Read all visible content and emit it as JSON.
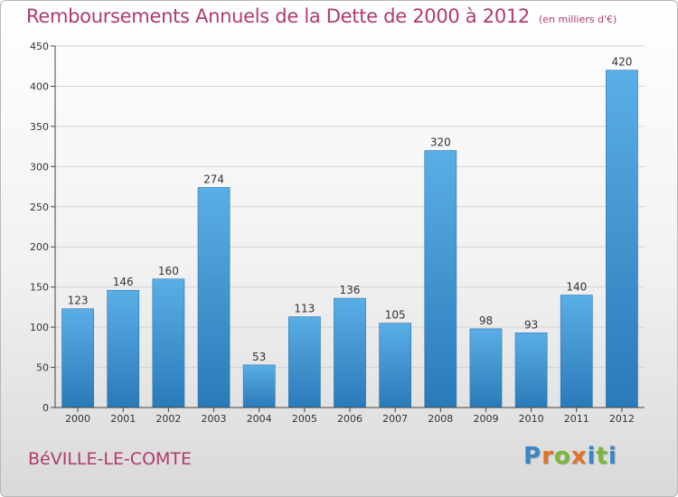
{
  "header": {
    "title": "Remboursements Annuels de la Dette de 2000 à 2012",
    "unit": "(en milliers d'€)"
  },
  "footer": {
    "town": "BéVILLE-LE-COMTE",
    "brand": "Proxiti",
    "brand_colors": [
      "#3a86c8",
      "#e2722b",
      "#7bb83a",
      "#e2722b",
      "#3a86c8",
      "#7bb83a",
      "#3a86c8"
    ]
  },
  "colors": {
    "bar_top": "#5aaee6",
    "bar_bottom": "#2a7ab8",
    "axis": "#444444",
    "grid": "#d2d2d2"
  },
  "chart_data": {
    "type": "bar",
    "categories": [
      "2000",
      "2001",
      "2002",
      "2003",
      "2004",
      "2005",
      "2006",
      "2007",
      "2008",
      "2009",
      "2010",
      "2011",
      "2012"
    ],
    "values": [
      123,
      146,
      160,
      274,
      53,
      113,
      136,
      105,
      320,
      98,
      93,
      140,
      420
    ],
    "title": "Remboursements Annuels de la Dette de 2000 à 2012",
    "ylim": [
      0,
      450
    ],
    "yticks": [
      0,
      50,
      100,
      150,
      200,
      250,
      300,
      350,
      400,
      450
    ],
    "grid": true,
    "data_labels": true
  }
}
